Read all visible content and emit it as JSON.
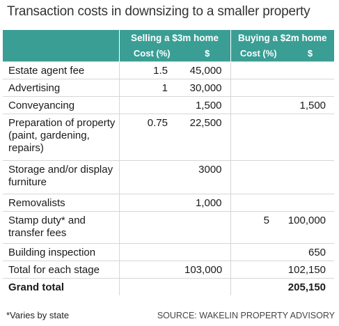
{
  "title": "Transaction costs in downsizing to a smaller property",
  "header": {
    "group_selling": "Selling a $3m home",
    "group_buying": "Buying a $2m home",
    "col_cost_pct_1": "Cost (%)",
    "col_dollar_1": "$",
    "col_cost_pct_2": "Cost (%)",
    "col_dollar_2": "$"
  },
  "rows": [
    {
      "label": "Estate agent fee",
      "sell_pct": "1.5",
      "sell_amt": "45,000",
      "buy_pct": "",
      "buy_amt": ""
    },
    {
      "label": "Advertising",
      "sell_pct": "1",
      "sell_amt": "30,000",
      "buy_pct": "",
      "buy_amt": ""
    },
    {
      "label": "Conveyancing",
      "sell_pct": "",
      "sell_amt": "1,500",
      "buy_pct": "",
      "buy_amt": "1,500"
    },
    {
      "label": "Preparation of property (paint, gardening, repairs)",
      "sell_pct": "0.75",
      "sell_amt": "22,500",
      "buy_pct": "",
      "buy_amt": ""
    },
    {
      "label": "Storage and/or display furniture",
      "sell_pct": "",
      "sell_amt": "3000",
      "buy_pct": "",
      "buy_amt": ""
    },
    {
      "label": "Removalists",
      "sell_pct": "",
      "sell_amt": "1,000",
      "buy_pct": "",
      "buy_amt": ""
    },
    {
      "label": "Stamp duty* and transfer fees",
      "sell_pct": "",
      "sell_amt": "",
      "buy_pct": "5",
      "buy_amt": "100,000"
    },
    {
      "label": "Building inspection",
      "sell_pct": "",
      "sell_amt": "",
      "buy_pct": "",
      "buy_amt": "650"
    },
    {
      "label": "Total for each stage",
      "sell_pct": "",
      "sell_amt": "103,000",
      "buy_pct": "",
      "buy_amt": "102,150"
    },
    {
      "label": "Grand total",
      "sell_pct": "",
      "sell_amt": "",
      "buy_pct": "",
      "buy_amt": "205,150"
    }
  ],
  "footnote": "*Varies by state",
  "source": "SOURCE: WAKELIN PROPERTY ADVISORY",
  "colors": {
    "header_bg": "#3a9e94",
    "header_text": "#ffffff",
    "grid": "#d6d6d6"
  }
}
